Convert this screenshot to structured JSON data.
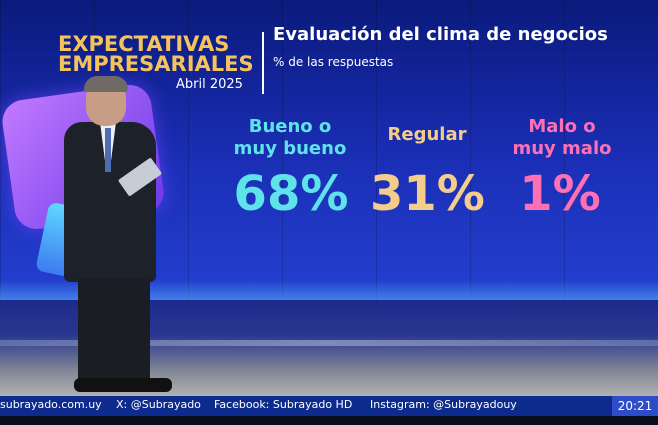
{
  "header": {
    "title_line1": "EXPECTATIVAS",
    "title_line2": "EMPRESARIALES",
    "date": "Abril 2025",
    "subtitle": "Evaluación del clima de negocios",
    "subnote": "% de las respuestas"
  },
  "categories": [
    {
      "label_line1": "Bueno o",
      "label_line2": "muy bueno",
      "value": "68%",
      "color": "#5fe3ea"
    },
    {
      "label_line1": "Regular",
      "label_line2": "",
      "value": "31%",
      "color": "#f4cd8a"
    },
    {
      "label_line1": "Malo o",
      "label_line2": "muy malo",
      "value": "1%",
      "color": "#ff6fb4"
    }
  ],
  "ticker": {
    "website": "subrayado.com.uy",
    "x": "X: @Subrayado",
    "facebook": "Facebook: Subrayado HD",
    "instagram": "Instagram: @Subrayadouy",
    "time": "20:21"
  }
}
